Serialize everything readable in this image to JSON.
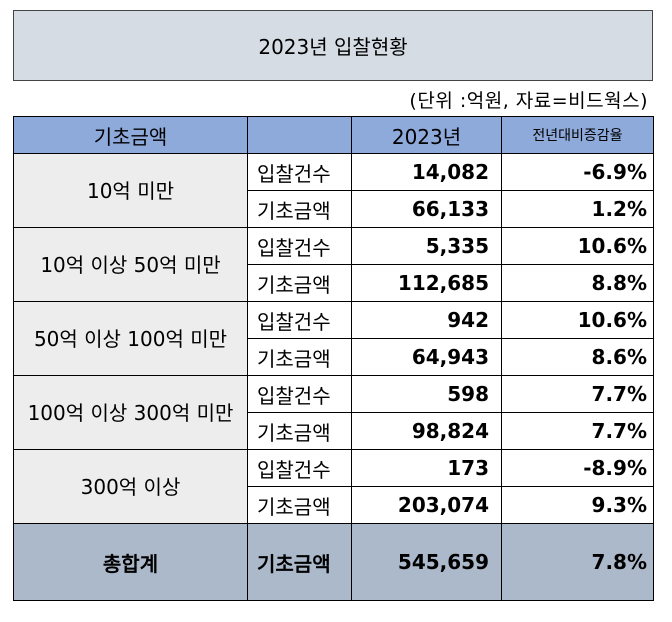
{
  "title": "2023년  입찰현황",
  "unit_note": "(단위 :억원, 자료=비드웍스)",
  "header": {
    "category": "기초금액",
    "blank": "",
    "year": "2023년",
    "change": "전년대비증감율"
  },
  "groups": [
    {
      "label": "10억 미만",
      "rows": [
        {
          "type": "입찰건수",
          "value": "14,082",
          "change": "-6.9%"
        },
        {
          "type": "기초금액",
          "value": "66,133",
          "change": "1.2%"
        }
      ]
    },
    {
      "label": "10억 이상 50억 미만",
      "rows": [
        {
          "type": "입찰건수",
          "value": "5,335",
          "change": "10.6%"
        },
        {
          "type": "기초금액",
          "value": "112,685",
          "change": "8.8%"
        }
      ]
    },
    {
      "label": "50억 이상 100억 미만",
      "rows": [
        {
          "type": "입찰건수",
          "value": "942",
          "change": "10.6%"
        },
        {
          "type": "기초금액",
          "value": "64,943",
          "change": "8.6%"
        }
      ]
    },
    {
      "label": "100억 이상 300억 미만",
      "rows": [
        {
          "type": "입찰건수",
          "value": "598",
          "change": "7.7%"
        },
        {
          "type": "기초금액",
          "value": "98,824",
          "change": "7.7%"
        }
      ]
    },
    {
      "label": "300억 이상",
      "rows": [
        {
          "type": "입찰건수",
          "value": "173",
          "change": "-8.9%"
        },
        {
          "type": "기초금액",
          "value": "203,074",
          "change": "9.3%"
        }
      ]
    }
  ],
  "total": {
    "label": "총합계",
    "type": "기초금액",
    "value": "545,659",
    "change": "7.8%"
  }
}
